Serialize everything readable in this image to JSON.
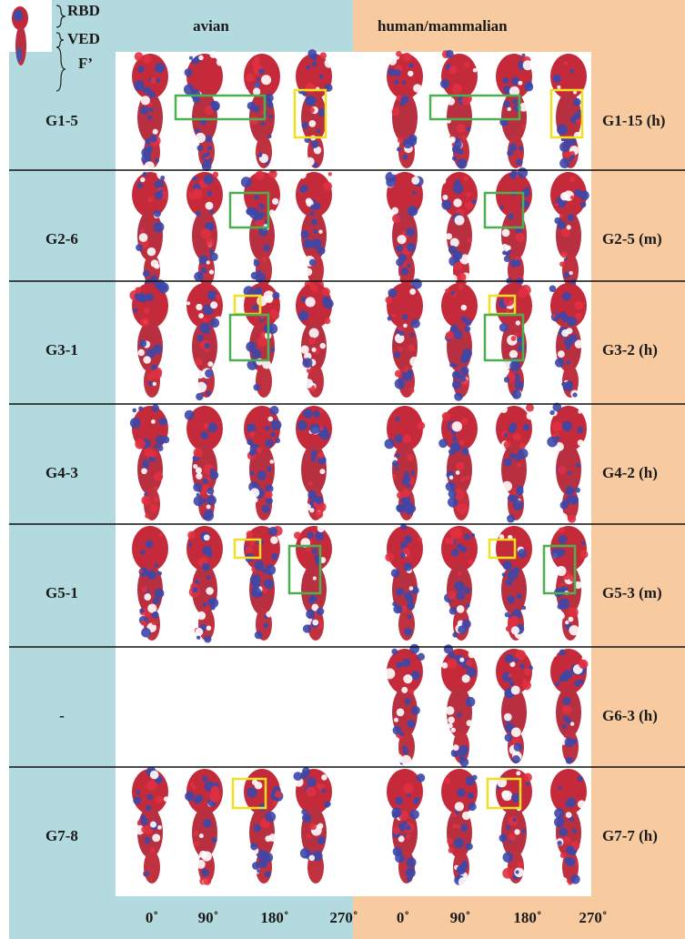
{
  "legend": {
    "labels": [
      "RBD",
      "VED",
      "F’"
    ]
  },
  "header": {
    "left": "avian",
    "right": "human/mammalian"
  },
  "rows": [
    {
      "left": "G1-5",
      "right": "G1-15 (h)"
    },
    {
      "left": "G2-6",
      "right": "G2-5 (m)"
    },
    {
      "left": "G3-1",
      "right": "G3-2 (h)"
    },
    {
      "left": "G4-3",
      "right": "G4-2 (h)"
    },
    {
      "left": "G5-1",
      "right": "G5-3 (m)"
    },
    {
      "left": "-",
      "right": "G6-3 (h)"
    },
    {
      "left": "G7-8",
      "right": "G7-7 (h)"
    }
  ],
  "angles": [
    "0˚",
    "90˚",
    "180˚",
    "270˚",
    "0˚",
    "90˚",
    "180˚",
    "270˚"
  ]
}
